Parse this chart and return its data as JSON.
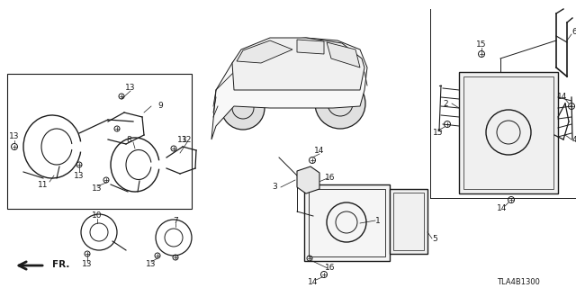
{
  "bg_color": "#ffffff",
  "diagram_code": "TLA4B1300",
  "line_color": "#1a1a1a",
  "font_size": 7.0,
  "fig_w": 6.4,
  "fig_h": 3.2,
  "dpi": 100
}
